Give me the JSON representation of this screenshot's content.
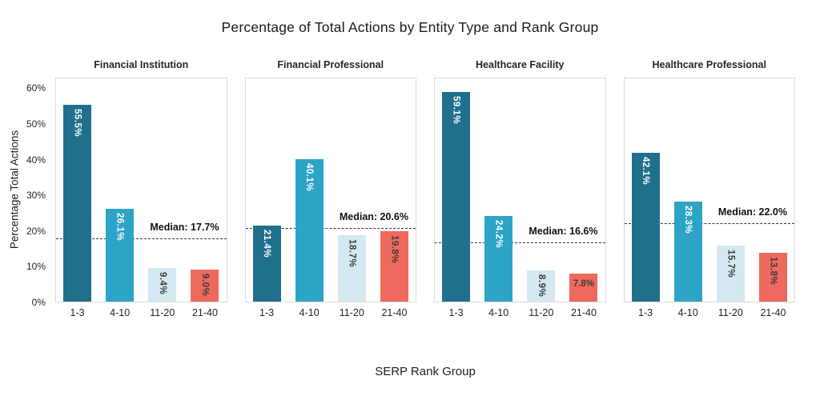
{
  "chart_data": {
    "type": "bar",
    "title": "Percentage of Total Actions by Entity Type and Rank Group",
    "xlabel": "SERP Rank Group",
    "ylabel": "Percentage Total Actions",
    "categories": [
      "1-3",
      "4-10",
      "11-20",
      "21-40"
    ],
    "y_ticks": [
      {
        "value": 0,
        "label": "0%"
      },
      {
        "value": 10,
        "label": "10%"
      },
      {
        "value": 20,
        "label": "20%"
      },
      {
        "value": 30,
        "label": "30%"
      },
      {
        "value": 40,
        "label": "40%"
      },
      {
        "value": 50,
        "label": "50%"
      },
      {
        "value": 60,
        "label": "60%"
      }
    ],
    "ylim": [
      0,
      63
    ],
    "grid": false,
    "legend": "none",
    "bar_colors": [
      "#20708d",
      "#2da4c6",
      "#d3e8f1",
      "#ee6a5e"
    ],
    "bar_label_colors": [
      "#ffffff",
      "#ffffff",
      "#3d3d3d",
      "#3d3d3d"
    ],
    "panels": [
      {
        "title": "Financial Institution",
        "values": [
          55.5,
          26.1,
          9.4,
          9.0
        ],
        "labels": [
          "55.5%",
          "26.1%",
          "9.4%",
          "9.0%"
        ],
        "label_orientations": [
          "v",
          "v",
          "v",
          "v"
        ],
        "median": 17.7,
        "median_label": "Median: 17.7%"
      },
      {
        "title": "Financial Professional",
        "values": [
          21.4,
          40.1,
          18.7,
          19.8
        ],
        "labels": [
          "21.4%",
          "40.1%",
          "18.7%",
          "19.8%"
        ],
        "label_orientations": [
          "v",
          "v",
          "v",
          "v"
        ],
        "median": 20.6,
        "median_label": "Median: 20.6%"
      },
      {
        "title": "Healthcare Facility",
        "values": [
          59.1,
          24.2,
          8.9,
          7.8
        ],
        "labels": [
          "59.1%",
          "24.2%",
          "8.9%",
          "7.8%"
        ],
        "label_orientations": [
          "v",
          "v",
          "v",
          "h"
        ],
        "median": 16.6,
        "median_label": "Median: 16.6%"
      },
      {
        "title": "Healthcare Professional",
        "values": [
          42.1,
          28.3,
          15.7,
          13.8
        ],
        "labels": [
          "42.1%",
          "28.3%",
          "15.7%",
          "13.8%"
        ],
        "label_orientations": [
          "v",
          "v",
          "v",
          "v"
        ],
        "median": 22.0,
        "median_label": "Median: 22.0%"
      }
    ]
  }
}
